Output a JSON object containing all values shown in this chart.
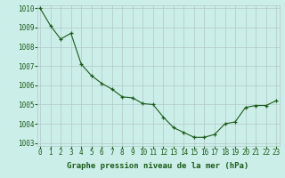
{
  "x": [
    0,
    1,
    2,
    3,
    4,
    5,
    6,
    7,
    8,
    9,
    10,
    11,
    12,
    13,
    14,
    15,
    16,
    17,
    18,
    19,
    20,
    21,
    22,
    23
  ],
  "y": [
    1010.0,
    1009.1,
    1008.4,
    1008.7,
    1007.1,
    1006.5,
    1006.1,
    1005.8,
    1005.4,
    1005.35,
    1005.05,
    1005.0,
    1004.35,
    1003.8,
    1003.55,
    1003.3,
    1003.3,
    1003.45,
    1004.0,
    1004.1,
    1004.85,
    1004.95,
    1004.95,
    1005.2
  ],
  "ylim_min": 1003,
  "ylim_max": 1010,
  "yticks": [
    1003,
    1004,
    1005,
    1006,
    1007,
    1008,
    1009,
    1010
  ],
  "xticks": [
    0,
    1,
    2,
    3,
    4,
    5,
    6,
    7,
    8,
    9,
    10,
    11,
    12,
    13,
    14,
    15,
    16,
    17,
    18,
    19,
    20,
    21,
    22,
    23
  ],
  "line_color": "#1a5c1a",
  "marker": "+",
  "marker_color": "#1a5c1a",
  "bg_color": "#cceee8",
  "grid_color": "#b0c8c8",
  "xlabel": "Graphe pression niveau de la mer (hPa)",
  "xlabel_color": "#1a5c1a",
  "tick_color": "#1a5c1a",
  "xlabel_fontsize": 6.5,
  "tick_fontsize": 5.5,
  "ytick_fontsize": 5.5
}
